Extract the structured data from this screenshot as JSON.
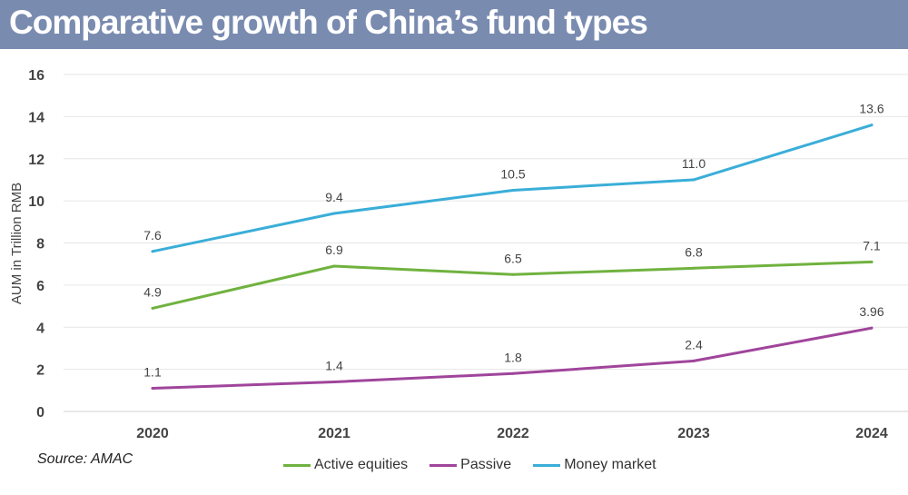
{
  "title": "Comparative growth of China’s fund types",
  "source": "Source: AMAC",
  "chart_data": {
    "type": "line",
    "title": "Comparative growth of China’s fund types",
    "xlabel": "",
    "ylabel": "AUM in Trillion RMB",
    "categories": [
      "2020",
      "2021",
      "2022",
      "2023",
      "2024"
    ],
    "ylim": [
      0,
      16
    ],
    "yticks": [
      0,
      2,
      4,
      6,
      8,
      10,
      12,
      14,
      16
    ],
    "grid": true,
    "legend_position": "bottom",
    "series": [
      {
        "name": "Active equities",
        "color": "#70b23f",
        "values": [
          4.9,
          6.9,
          6.5,
          6.8,
          7.1
        ],
        "labels": [
          "4.9",
          "6.9",
          "6.5",
          "6.8",
          "7.1"
        ]
      },
      {
        "name": "Passive",
        "color": "#a0459b",
        "values": [
          1.1,
          1.4,
          1.8,
          2.4,
          3.96
        ],
        "labels": [
          "1.1",
          "1.4",
          "1.8",
          "2.4",
          "3.96"
        ]
      },
      {
        "name": "Money market",
        "color": "#3aaed8",
        "values": [
          7.6,
          9.4,
          10.5,
          11.0,
          13.6
        ],
        "labels": [
          "7.6",
          "9.4",
          "10.5",
          "11.0",
          "13.6"
        ]
      }
    ]
  }
}
